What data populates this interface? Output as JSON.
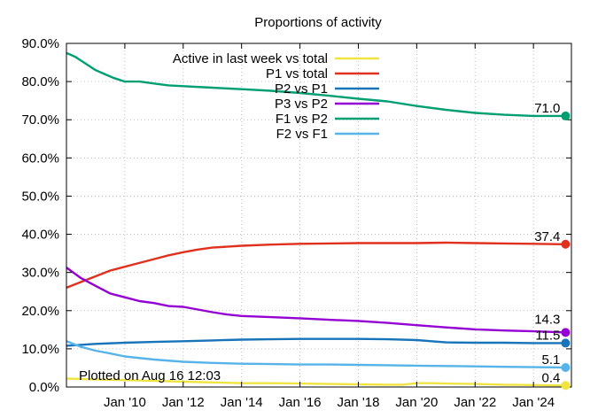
{
  "chart_data": {
    "type": "line",
    "title": "Proportions of activity",
    "xlabel": "",
    "ylabel": "",
    "ylim": [
      0,
      90
    ],
    "y_tick_labels": [
      "0.0%",
      "10.0%",
      "20.0%",
      "30.0%",
      "40.0%",
      "50.0%",
      "60.0%",
      "70.0%",
      "80.0%",
      "90.0%"
    ],
    "y_tick_values": [
      0,
      10,
      20,
      30,
      40,
      50,
      60,
      70,
      80,
      90
    ],
    "xlim": [
      2008.0,
      2025.3
    ],
    "x_tick_values": [
      2010,
      2012,
      2014,
      2016,
      2018,
      2020,
      2022,
      2024
    ],
    "x_tick_labels": [
      "Jan '10",
      "Jan '12",
      "Jan '14",
      "Jan '16",
      "Jan '18",
      "Jan '20",
      "Jan '22",
      "Jan '24"
    ],
    "legend_placement": "top-center",
    "annotation": "Plotted on Aug 16 12:03",
    "series": [
      {
        "name": "Active in last week vs total",
        "color": "#f0e442",
        "end_label": "0.4",
        "points": [
          [
            2008.0,
            2.2
          ],
          [
            2009.0,
            2.0
          ],
          [
            2010.0,
            1.8
          ],
          [
            2011.0,
            1.6
          ],
          [
            2012.0,
            1.4
          ],
          [
            2013.0,
            1.2
          ],
          [
            2014.0,
            1.0
          ],
          [
            2015.0,
            1.0
          ],
          [
            2016.0,
            0.9
          ],
          [
            2017.0,
            0.8
          ],
          [
            2018.0,
            0.7
          ],
          [
            2019.0,
            0.6
          ],
          [
            2019.5,
            0.6
          ],
          [
            2020.0,
            1.0
          ],
          [
            2020.5,
            1.0
          ],
          [
            2021.0,
            0.9
          ],
          [
            2022.0,
            0.8
          ],
          [
            2023.0,
            0.6
          ],
          [
            2024.0,
            0.5
          ],
          [
            2025.1,
            0.4
          ]
        ]
      },
      {
        "name": "P1 vs total",
        "color": "#e0301e",
        "end_label": "37.4",
        "points": [
          [
            2008.0,
            26.0
          ],
          [
            2008.5,
            27.5
          ],
          [
            2009.0,
            29.0
          ],
          [
            2009.5,
            30.5
          ],
          [
            2010.0,
            31.5
          ],
          [
            2010.5,
            32.5
          ],
          [
            2011.0,
            33.5
          ],
          [
            2011.5,
            34.5
          ],
          [
            2012.0,
            35.3
          ],
          [
            2012.5,
            36.0
          ],
          [
            2013.0,
            36.5
          ],
          [
            2014.0,
            37.0
          ],
          [
            2015.0,
            37.3
          ],
          [
            2016.0,
            37.5
          ],
          [
            2017.0,
            37.6
          ],
          [
            2018.0,
            37.7
          ],
          [
            2019.0,
            37.7
          ],
          [
            2020.0,
            37.7
          ],
          [
            2021.0,
            37.8
          ],
          [
            2022.0,
            37.7
          ],
          [
            2023.0,
            37.6
          ],
          [
            2024.0,
            37.5
          ],
          [
            2025.1,
            37.4
          ]
        ]
      },
      {
        "name": "P2 vs P1",
        "color": "#1874b8",
        "end_label": "11.5",
        "points": [
          [
            2008.0,
            10.8
          ],
          [
            2009.0,
            11.3
          ],
          [
            2010.0,
            11.6
          ],
          [
            2011.0,
            11.8
          ],
          [
            2012.0,
            12.0
          ],
          [
            2013.0,
            12.2
          ],
          [
            2014.0,
            12.4
          ],
          [
            2015.0,
            12.5
          ],
          [
            2016.0,
            12.6
          ],
          [
            2017.0,
            12.6
          ],
          [
            2018.0,
            12.6
          ],
          [
            2019.0,
            12.5
          ],
          [
            2020.0,
            12.3
          ],
          [
            2020.5,
            12.0
          ],
          [
            2021.0,
            11.7
          ],
          [
            2022.0,
            11.6
          ],
          [
            2023.0,
            11.6
          ],
          [
            2024.0,
            11.5
          ],
          [
            2025.1,
            11.5
          ]
        ]
      },
      {
        "name": "P3 vs P2",
        "color": "#9400d3",
        "end_label": "14.3",
        "points": [
          [
            2008.0,
            31.3
          ],
          [
            2008.5,
            28.5
          ],
          [
            2009.0,
            26.5
          ],
          [
            2009.5,
            24.5
          ],
          [
            2010.0,
            23.5
          ],
          [
            2010.5,
            22.5
          ],
          [
            2011.0,
            22.0
          ],
          [
            2011.5,
            21.2
          ],
          [
            2012.0,
            21.0
          ],
          [
            2012.5,
            20.3
          ],
          [
            2013.0,
            19.6
          ],
          [
            2013.5,
            19.0
          ],
          [
            2014.0,
            18.6
          ],
          [
            2015.0,
            18.3
          ],
          [
            2016.0,
            18.0
          ],
          [
            2017.0,
            17.6
          ],
          [
            2018.0,
            17.3
          ],
          [
            2019.0,
            16.8
          ],
          [
            2020.0,
            16.2
          ],
          [
            2021.0,
            15.6
          ],
          [
            2022.0,
            15.1
          ],
          [
            2023.0,
            14.8
          ],
          [
            2024.0,
            14.6
          ],
          [
            2025.1,
            14.3
          ]
        ]
      },
      {
        "name": "F1 vs P2",
        "color": "#009e73",
        "end_label": "71.0",
        "points": [
          [
            2008.0,
            87.5
          ],
          [
            2008.3,
            86.5
          ],
          [
            2008.6,
            85.0
          ],
          [
            2009.0,
            83.0
          ],
          [
            2009.3,
            82.0
          ],
          [
            2009.6,
            81.0
          ],
          [
            2010.0,
            80.0
          ],
          [
            2010.5,
            80.0
          ],
          [
            2011.0,
            79.5
          ],
          [
            2011.5,
            79.0
          ],
          [
            2012.0,
            78.8
          ],
          [
            2013.0,
            78.4
          ],
          [
            2014.0,
            78.0
          ],
          [
            2015.0,
            77.6
          ],
          [
            2016.0,
            77.0
          ],
          [
            2017.0,
            76.3
          ],
          [
            2018.0,
            75.5
          ],
          [
            2019.0,
            74.8
          ],
          [
            2020.0,
            73.6
          ],
          [
            2021.0,
            72.6
          ],
          [
            2022.0,
            71.8
          ],
          [
            2023.0,
            71.3
          ],
          [
            2024.0,
            71.0
          ],
          [
            2025.1,
            71.0
          ]
        ]
      },
      {
        "name": "F2 vs F1",
        "color": "#56b4e9",
        "end_label": "5.1",
        "points": [
          [
            2008.0,
            12.0
          ],
          [
            2008.5,
            10.5
          ],
          [
            2009.0,
            9.5
          ],
          [
            2009.5,
            8.8
          ],
          [
            2010.0,
            8.0
          ],
          [
            2011.0,
            7.2
          ],
          [
            2012.0,
            6.6
          ],
          [
            2013.0,
            6.3
          ],
          [
            2014.0,
            6.1
          ],
          [
            2015.0,
            6.0
          ],
          [
            2016.0,
            5.9
          ],
          [
            2017.0,
            5.9
          ],
          [
            2018.0,
            5.8
          ],
          [
            2019.0,
            5.7
          ],
          [
            2020.0,
            5.6
          ],
          [
            2021.0,
            5.5
          ],
          [
            2022.0,
            5.4
          ],
          [
            2023.0,
            5.3
          ],
          [
            2024.0,
            5.2
          ],
          [
            2025.1,
            5.1
          ]
        ]
      }
    ]
  }
}
